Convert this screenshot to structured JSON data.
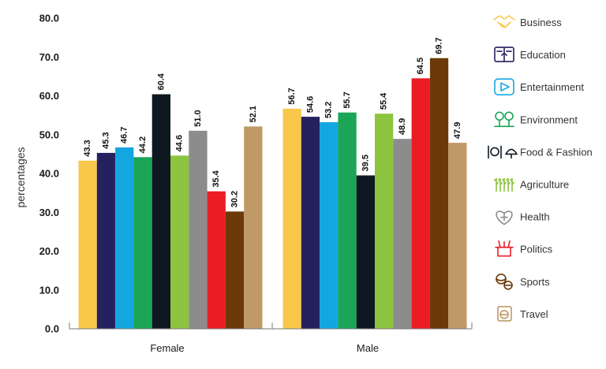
{
  "chart_data": {
    "type": "bar",
    "ylabel": "percentages",
    "ylim": [
      0,
      80
    ],
    "yticks": [
      "0.0",
      "10.0",
      "20.0",
      "30.0",
      "40.0",
      "50.0",
      "60.0",
      "70.0",
      "80.0"
    ],
    "categories": [
      "Female",
      "Male"
    ],
    "grid": false,
    "legend_position": "right",
    "series": [
      {
        "name": "Business",
        "color": "#F9C84A",
        "icon": "handshake-icon",
        "values": [
          43.3,
          56.7
        ]
      },
      {
        "name": "Education",
        "color": "#25215F",
        "icon": "book-icon",
        "values": [
          45.3,
          54.6
        ]
      },
      {
        "name": "Entertainment",
        "color": "#14A6E1",
        "icon": "play-icon",
        "values": [
          46.7,
          53.2
        ]
      },
      {
        "name": "Environment",
        "color": "#1AA557",
        "icon": "trees-icon",
        "values": [
          44.2,
          55.7
        ]
      },
      {
        "name": "Food & Fashion",
        "color": "#0E1821",
        "icon": "food-fashion-icon",
        "values": [
          60.4,
          39.5
        ]
      },
      {
        "name": "Agriculture",
        "color": "#8CC43F",
        "icon": "crops-icon",
        "values": [
          44.6,
          55.4
        ]
      },
      {
        "name": "Health",
        "color": "#8C8C8C",
        "icon": "heart-plus-icon",
        "values": [
          51.0,
          48.9
        ]
      },
      {
        "name": "Politics",
        "color": "#EC1C24",
        "icon": "podium-icon",
        "values": [
          35.4,
          64.5
        ]
      },
      {
        "name": "Sports",
        "color": "#6B3A08",
        "icon": "balls-icon",
        "values": [
          30.2,
          69.7
        ]
      },
      {
        "name": "Travel",
        "color": "#BF9A67",
        "icon": "passport-icon",
        "values": [
          52.1,
          47.9
        ]
      }
    ]
  }
}
